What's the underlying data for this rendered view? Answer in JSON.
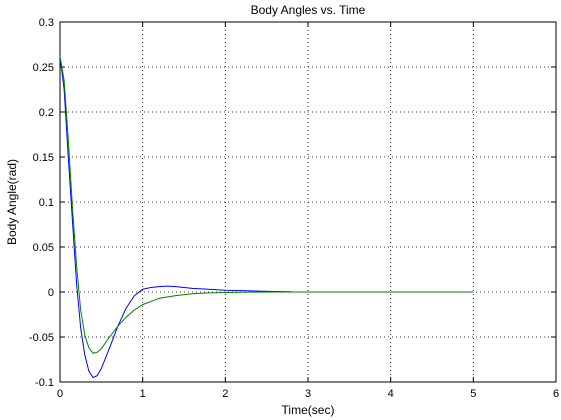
{
  "chart_data": {
    "type": "line",
    "title": "Body Angles vs. Time",
    "xlabel": "Time(sec)",
    "ylabel": "Body Angle(rad)",
    "xlim": [
      0,
      6
    ],
    "ylim": [
      -0.1,
      0.3
    ],
    "xticks": [
      0,
      1,
      2,
      3,
      4,
      5,
      6
    ],
    "yticks": [
      -0.1,
      -0.05,
      0,
      0.05,
      0.1,
      0.15,
      0.2,
      0.25,
      0.3
    ],
    "grid": true,
    "legend": "none",
    "series": [
      {
        "color": "#0000ff",
        "x": [
          0,
          0.05,
          0.1,
          0.15,
          0.2,
          0.25,
          0.3,
          0.35,
          0.4,
          0.45,
          0.5,
          0.6,
          0.7,
          0.8,
          0.9,
          1.0,
          1.1,
          1.2,
          1.3,
          1.4,
          1.5,
          1.6,
          1.8,
          2.0,
          2.2,
          2.4,
          2.6,
          2.8
        ],
        "y": [
          0.262,
          0.225,
          0.15,
          0.08,
          0.01,
          -0.04,
          -0.07,
          -0.088,
          -0.095,
          -0.093,
          -0.085,
          -0.062,
          -0.038,
          -0.018,
          -0.004,
          0.003,
          0.005,
          0.006,
          0.0065,
          0.006,
          0.005,
          0.004,
          0.003,
          0.002,
          0.0015,
          0.001,
          0.0005,
          0.0003
        ]
      },
      {
        "color": "#008000",
        "x": [
          0,
          0.05,
          0.1,
          0.15,
          0.2,
          0.25,
          0.3,
          0.35,
          0.4,
          0.45,
          0.5,
          0.6,
          0.7,
          0.8,
          0.9,
          1.0,
          1.2,
          1.4,
          1.6,
          1.8,
          2.0,
          2.3,
          2.6,
          3.0,
          3.5,
          4.0,
          4.5,
          5.0
        ],
        "y": [
          0.262,
          0.235,
          0.17,
          0.095,
          0.03,
          -0.02,
          -0.048,
          -0.062,
          -0.068,
          -0.067,
          -0.063,
          -0.05,
          -0.038,
          -0.028,
          -0.02,
          -0.014,
          -0.007,
          -0.004,
          -0.002,
          -0.001,
          -0.0005,
          -0.0002,
          0.0,
          0.0,
          0.0,
          0.0,
          0.0,
          0.0
        ]
      }
    ]
  }
}
